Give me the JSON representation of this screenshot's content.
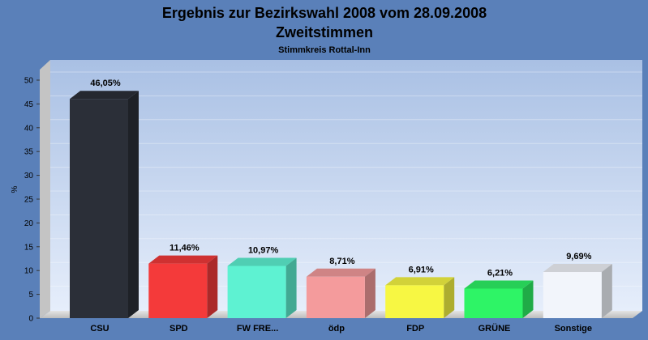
{
  "chart_data": {
    "type": "bar",
    "title": "Ergebnis zur Bezirkswahl 2008 vom 28.09.2008",
    "subtitle": "Zweitstimmen",
    "caption": "Stimmkreis Rottal-Inn",
    "ylabel": "%",
    "xlabel": "",
    "ylim": [
      0,
      50
    ],
    "yticks": [
      0,
      5,
      10,
      15,
      20,
      25,
      30,
      35,
      40,
      45,
      50
    ],
    "grid": true,
    "categories": [
      "CSU",
      "SPD",
      "FW FRE...",
      "ödp",
      "FDP",
      "GRÜNE",
      "Sonstige"
    ],
    "values": [
      46.05,
      11.46,
      10.97,
      8.71,
      6.91,
      6.21,
      9.69
    ],
    "value_labels": [
      "46,05%",
      "11,46%",
      "10,97%",
      "8,71%",
      "6,91%",
      "6,21%",
      "9,69%"
    ],
    "colors": [
      "#2b2f38",
      "#f43a3a",
      "#5ef2d2",
      "#f49b9c",
      "#f7f743",
      "#2ef466",
      "#f2f5fb"
    ]
  }
}
